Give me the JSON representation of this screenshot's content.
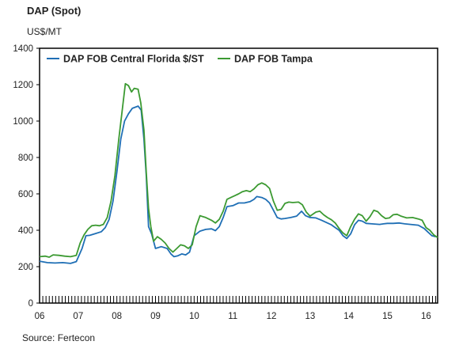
{
  "chart_data": {
    "type": "line",
    "title": "DAP (Spot)",
    "unit": "US$/MT",
    "source": "Source: Fertecon",
    "ylim": [
      0,
      1400
    ],
    "yticks": [
      0,
      200,
      400,
      600,
      800,
      1000,
      1200,
      1400
    ],
    "xlim": [
      2006,
      2016.3
    ],
    "xticks": [
      {
        "value": 2006,
        "label": "06"
      },
      {
        "value": 2007,
        "label": "07"
      },
      {
        "value": 2008,
        "label": "08"
      },
      {
        "value": 2009,
        "label": "09"
      },
      {
        "value": 2010,
        "label": "10"
      },
      {
        "value": 2011,
        "label": "11"
      },
      {
        "value": 2012,
        "label": "12"
      },
      {
        "value": 2013,
        "label": "13"
      },
      {
        "value": 2014,
        "label": "14"
      },
      {
        "value": 2015,
        "label": "15"
      },
      {
        "value": 2016,
        "label": "16"
      }
    ],
    "legend_position": "top",
    "grid": false,
    "series": [
      {
        "name": "DAP FOB Central Florida $/ST",
        "color": "#1f6fb5",
        "points": [
          [
            2006.0,
            230
          ],
          [
            2006.2,
            222
          ],
          [
            2006.4,
            220
          ],
          [
            2006.6,
            222
          ],
          [
            2006.8,
            218
          ],
          [
            2006.95,
            228
          ],
          [
            2007.1,
            300
          ],
          [
            2007.2,
            370
          ],
          [
            2007.3,
            372
          ],
          [
            2007.45,
            382
          ],
          [
            2007.6,
            392
          ],
          [
            2007.7,
            415
          ],
          [
            2007.8,
            460
          ],
          [
            2007.9,
            560
          ],
          [
            2008.0,
            720
          ],
          [
            2008.1,
            900
          ],
          [
            2008.2,
            1000
          ],
          [
            2008.3,
            1040
          ],
          [
            2008.4,
            1070
          ],
          [
            2008.55,
            1082
          ],
          [
            2008.63,
            1060
          ],
          [
            2008.7,
            900
          ],
          [
            2008.76,
            700
          ],
          [
            2008.82,
            420
          ],
          [
            2008.9,
            380
          ],
          [
            2009.0,
            300
          ],
          [
            2009.15,
            310
          ],
          [
            2009.3,
            300
          ],
          [
            2009.4,
            270
          ],
          [
            2009.48,
            255
          ],
          [
            2009.58,
            260
          ],
          [
            2009.68,
            270
          ],
          [
            2009.78,
            265
          ],
          [
            2009.88,
            280
          ],
          [
            2010.0,
            370
          ],
          [
            2010.15,
            395
          ],
          [
            2010.3,
            405
          ],
          [
            2010.45,
            408
          ],
          [
            2010.55,
            398
          ],
          [
            2010.65,
            420
          ],
          [
            2010.75,
            470
          ],
          [
            2010.85,
            530
          ],
          [
            2011.0,
            535
          ],
          [
            2011.15,
            550
          ],
          [
            2011.3,
            550
          ],
          [
            2011.45,
            558
          ],
          [
            2011.55,
            570
          ],
          [
            2011.62,
            585
          ],
          [
            2011.75,
            580
          ],
          [
            2011.85,
            570
          ],
          [
            2011.95,
            550
          ],
          [
            2012.05,
            510
          ],
          [
            2012.15,
            470
          ],
          [
            2012.25,
            462
          ],
          [
            2012.35,
            465
          ],
          [
            2012.5,
            470
          ],
          [
            2012.65,
            478
          ],
          [
            2012.78,
            505
          ],
          [
            2012.88,
            480
          ],
          [
            2013.0,
            470
          ],
          [
            2013.15,
            468
          ],
          [
            2013.3,
            455
          ],
          [
            2013.45,
            440
          ],
          [
            2013.55,
            430
          ],
          [
            2013.65,
            415
          ],
          [
            2013.75,
            400
          ],
          [
            2013.85,
            370
          ],
          [
            2013.95,
            355
          ],
          [
            2014.05,
            380
          ],
          [
            2014.15,
            430
          ],
          [
            2014.25,
            455
          ],
          [
            2014.35,
            450
          ],
          [
            2014.45,
            438
          ],
          [
            2014.6,
            435
          ],
          [
            2014.8,
            432
          ],
          [
            2014.9,
            435
          ],
          [
            2015.0,
            438
          ],
          [
            2015.15,
            438
          ],
          [
            2015.3,
            440
          ],
          [
            2015.45,
            435
          ],
          [
            2015.6,
            432
          ],
          [
            2015.8,
            428
          ],
          [
            2015.95,
            410
          ],
          [
            2016.05,
            390
          ],
          [
            2016.15,
            370
          ],
          [
            2016.25,
            365
          ]
        ]
      },
      {
        "name": "DAP FOB Tampa",
        "color": "#3c9a32",
        "points": [
          [
            2006.0,
            255
          ],
          [
            2006.15,
            258
          ],
          [
            2006.25,
            252
          ],
          [
            2006.35,
            265
          ],
          [
            2006.5,
            262
          ],
          [
            2006.65,
            258
          ],
          [
            2006.8,
            255
          ],
          [
            2006.95,
            262
          ],
          [
            2007.05,
            330
          ],
          [
            2007.15,
            375
          ],
          [
            2007.25,
            405
          ],
          [
            2007.35,
            425
          ],
          [
            2007.45,
            428
          ],
          [
            2007.55,
            425
          ],
          [
            2007.65,
            432
          ],
          [
            2007.75,
            470
          ],
          [
            2007.85,
            560
          ],
          [
            2007.95,
            700
          ],
          [
            2008.05,
            900
          ],
          [
            2008.15,
            1080
          ],
          [
            2008.22,
            1205
          ],
          [
            2008.3,
            1195
          ],
          [
            2008.38,
            1160
          ],
          [
            2008.45,
            1180
          ],
          [
            2008.55,
            1175
          ],
          [
            2008.62,
            1100
          ],
          [
            2008.7,
            950
          ],
          [
            2008.76,
            720
          ],
          [
            2008.82,
            520
          ],
          [
            2008.88,
            420
          ],
          [
            2008.95,
            340
          ],
          [
            2009.05,
            365
          ],
          [
            2009.15,
            350
          ],
          [
            2009.25,
            330
          ],
          [
            2009.35,
            300
          ],
          [
            2009.45,
            280
          ],
          [
            2009.55,
            300
          ],
          [
            2009.65,
            320
          ],
          [
            2009.75,
            315
          ],
          [
            2009.85,
            300
          ],
          [
            2009.95,
            320
          ],
          [
            2010.05,
            420
          ],
          [
            2010.15,
            480
          ],
          [
            2010.3,
            470
          ],
          [
            2010.45,
            455
          ],
          [
            2010.55,
            440
          ],
          [
            2010.65,
            460
          ],
          [
            2010.75,
            505
          ],
          [
            2010.85,
            570
          ],
          [
            2010.95,
            580
          ],
          [
            2011.05,
            590
          ],
          [
            2011.15,
            600
          ],
          [
            2011.25,
            612
          ],
          [
            2011.35,
            618
          ],
          [
            2011.45,
            612
          ],
          [
            2011.55,
            628
          ],
          [
            2011.65,
            650
          ],
          [
            2011.75,
            660
          ],
          [
            2011.85,
            650
          ],
          [
            2011.95,
            630
          ],
          [
            2012.05,
            560
          ],
          [
            2012.15,
            510
          ],
          [
            2012.25,
            515
          ],
          [
            2012.35,
            548
          ],
          [
            2012.45,
            555
          ],
          [
            2012.55,
            552
          ],
          [
            2012.7,
            555
          ],
          [
            2012.8,
            540
          ],
          [
            2012.9,
            500
          ],
          [
            2013.0,
            478
          ],
          [
            2013.15,
            500
          ],
          [
            2013.25,
            505
          ],
          [
            2013.35,
            485
          ],
          [
            2013.45,
            470
          ],
          [
            2013.55,
            458
          ],
          [
            2013.65,
            440
          ],
          [
            2013.75,
            410
          ],
          [
            2013.85,
            385
          ],
          [
            2013.95,
            370
          ],
          [
            2014.05,
            420
          ],
          [
            2014.15,
            460
          ],
          [
            2014.25,
            490
          ],
          [
            2014.35,
            480
          ],
          [
            2014.45,
            450
          ],
          [
            2014.55,
            475
          ],
          [
            2014.65,
            510
          ],
          [
            2014.75,
            502
          ],
          [
            2014.85,
            480
          ],
          [
            2014.95,
            465
          ],
          [
            2015.05,
            468
          ],
          [
            2015.15,
            485
          ],
          [
            2015.25,
            488
          ],
          [
            2015.35,
            478
          ],
          [
            2015.5,
            468
          ],
          [
            2015.65,
            470
          ],
          [
            2015.8,
            462
          ],
          [
            2015.9,
            455
          ],
          [
            2016.0,
            415
          ],
          [
            2016.1,
            400
          ],
          [
            2016.2,
            375
          ],
          [
            2016.3,
            360
          ]
        ]
      }
    ]
  }
}
